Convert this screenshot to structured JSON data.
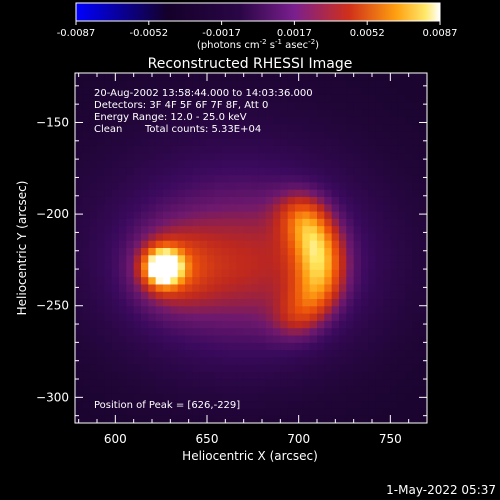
{
  "chart_data": {
    "type": "heatmap",
    "title": "Reconstructed RHESSI Image",
    "xlabel": "Heliocentric X (arcsec)",
    "ylabel": "Heliocentric Y (arcsec)",
    "xlim": [
      578,
      770
    ],
    "ylim": [
      -314,
      -123
    ],
    "x_ticks": [
      600,
      650,
      700,
      750
    ],
    "y_ticks": [
      -150,
      -200,
      -250,
      -300
    ],
    "colorbar": {
      "min": -0.0087,
      "max": 0.0087,
      "ticks": [
        "-0.0087",
        "-0.0052",
        "-0.0017",
        "0.0017",
        "0.0052",
        "0.0087"
      ],
      "unit_label": "(photons cm<sup>-2</sup> s<sup>-1</sup> asec<sup>-2</sup>)",
      "unit_label_text": "(photons cm-2 s-1 asec-2)",
      "colormap_stops": [
        "#0000ff",
        "#1a0033",
        "#4b0a7a",
        "#8a1f9a",
        "#c83010",
        "#ff6a00",
        "#ffd23a",
        "#ffffff"
      ]
    },
    "annotations": {
      "time_range": "20-Aug-2002 13:58:44.000 to 14:03:36.000",
      "detectors": "Detectors: 3F 4F 5F 6F 7F 8F, Att 0",
      "energy_range": "Energy Range: 12.0 - 25.0 keV",
      "method": "Clean",
      "total_counts": "Total counts: 5.33E+04",
      "peak_position": "Position of Peak = [626,-229]"
    },
    "sources": [
      {
        "name": "compact source",
        "x": 626,
        "y": -229,
        "peak_fraction": 1.0
      },
      {
        "name": "arc source",
        "x_range": [
          665,
          712
        ],
        "y_range": [
          -265,
          -195
        ],
        "peak_fraction": 0.85
      }
    ],
    "background_level": 0.0
  },
  "footer": {
    "timestamp": "1-May-2022 05:37"
  }
}
